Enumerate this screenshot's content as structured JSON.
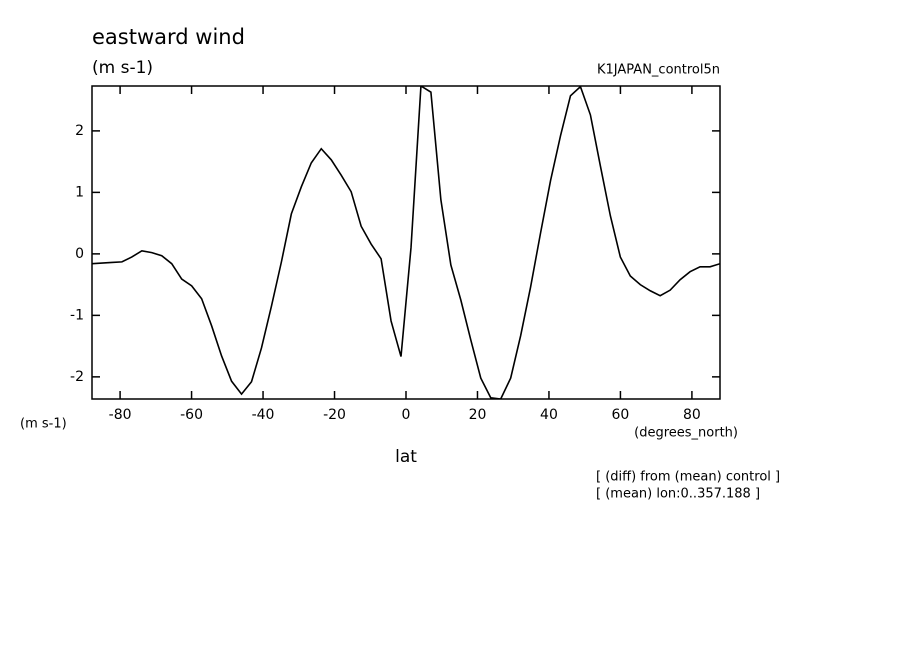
{
  "chart_data": {
    "type": "line",
    "title": "eastward wind",
    "subtitle": "(m s-1)",
    "dataset_label": "K1JAPAN_control5n",
    "y_label": "(m s-1)",
    "x_unit_label": "(degrees_north)",
    "x_label": "lat",
    "notes": [
      "[ (diff) from (mean) control ]",
      "[ (mean) lon:0..357.188 ]"
    ],
    "x": [
      -87.86,
      -85.07,
      -82.28,
      -79.49,
      -76.7,
      -73.91,
      -71.12,
      -68.34,
      -65.55,
      -62.76,
      -59.97,
      -57.18,
      -54.39,
      -51.6,
      -48.81,
      -46.02,
      -43.23,
      -40.44,
      -37.65,
      -34.86,
      -32.08,
      -29.29,
      -26.5,
      -23.71,
      -20.92,
      -18.13,
      -15.34,
      -12.55,
      -9.76,
      -6.97,
      -4.18,
      -1.4,
      1.4,
      4.18,
      6.97,
      9.76,
      12.55,
      15.34,
      18.13,
      20.92,
      23.71,
      26.5,
      29.29,
      32.08,
      34.86,
      37.65,
      40.44,
      43.23,
      46.02,
      48.81,
      51.6,
      54.39,
      57.18,
      59.97,
      62.76,
      65.55,
      68.34,
      71.12,
      73.91,
      76.7,
      79.49,
      82.28,
      85.07,
      87.86
    ],
    "series": [
      {
        "color": "#000000",
        "values": [
          -0.16,
          -0.15,
          -0.14,
          -0.13,
          -0.05,
          0.05,
          0.02,
          -0.03,
          -0.16,
          -0.41,
          -0.52,
          -0.73,
          -1.17,
          -1.66,
          -2.07,
          -2.28,
          -2.08,
          -1.53,
          -0.85,
          -0.13,
          0.65,
          1.09,
          1.48,
          1.71,
          1.53,
          1.28,
          1.01,
          0.45,
          0.16,
          -0.08,
          -1.09,
          -1.67,
          0.1,
          2.73,
          2.63,
          0.88,
          -0.18,
          -0.75,
          -1.4,
          -2.02,
          -2.34,
          -2.36,
          -2.02,
          -1.33,
          -0.54,
          0.34,
          1.19,
          1.92,
          2.57,
          2.72,
          2.26,
          1.43,
          0.62,
          -0.05,
          -0.36,
          -0.5,
          -0.6,
          -0.68,
          -0.59,
          -0.42,
          -0.29,
          -0.21,
          -0.21,
          -0.16
        ]
      }
    ],
    "xlim": [
      -87.86,
      87.86
    ],
    "ylim": [
      -2.36,
      2.73
    ],
    "xticks": [
      -80,
      -60,
      -40,
      -20,
      0,
      20,
      40,
      60,
      80
    ],
    "yticks": [
      -2,
      -1,
      0,
      1,
      2
    ],
    "grid": false
  }
}
